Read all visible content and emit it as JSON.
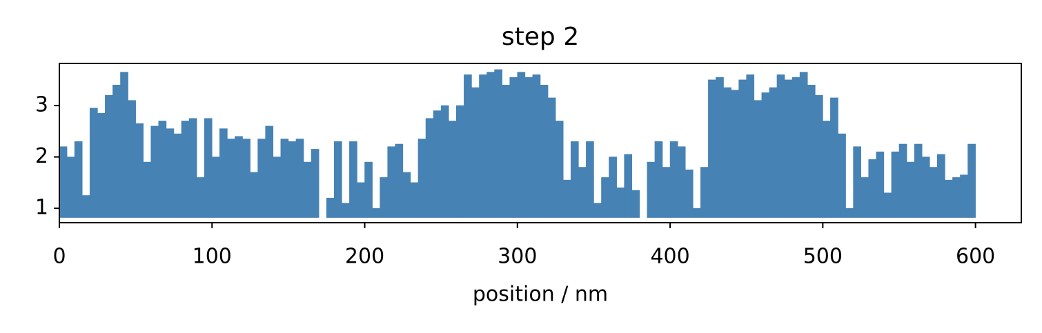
{
  "chart_data": {
    "type": "step-fill",
    "title": "step 2",
    "x_label": "position / nm",
    "color": "#4682b4",
    "x": [
      0,
      5,
      10,
      15,
      20,
      25,
      30,
      35,
      40,
      45,
      50,
      55,
      60,
      65,
      70,
      75,
      80,
      85,
      90,
      95,
      100,
      105,
      110,
      115,
      120,
      125,
      130,
      135,
      140,
      145,
      150,
      155,
      160,
      165,
      170,
      175,
      180,
      185,
      190,
      195,
      200,
      205,
      210,
      215,
      220,
      225,
      230,
      235,
      240,
      245,
      250,
      255,
      260,
      265,
      270,
      275,
      280,
      285,
      290,
      295,
      300,
      305,
      310,
      315,
      320,
      325,
      330,
      335,
      340,
      345,
      350,
      355,
      360,
      365,
      370,
      375,
      380,
      385,
      390,
      395,
      400,
      405,
      410,
      415,
      420,
      425,
      430,
      435,
      440,
      445,
      450,
      455,
      460,
      465,
      470,
      475,
      480,
      485,
      490,
      495,
      500,
      505,
      510,
      515,
      520,
      525,
      530,
      535,
      540,
      545,
      550,
      555,
      560,
      565,
      570,
      575,
      580,
      585,
      590,
      595
    ],
    "values": [
      2.2,
      2.0,
      2.3,
      1.25,
      2.95,
      2.85,
      3.2,
      3.4,
      3.65,
      3.1,
      2.65,
      1.9,
      2.6,
      2.7,
      2.55,
      2.45,
      2.7,
      2.75,
      1.6,
      2.75,
      2.0,
      2.55,
      2.35,
      2.4,
      2.35,
      1.7,
      2.35,
      2.6,
      2.0,
      2.35,
      2.3,
      2.35,
      1.9,
      2.15,
      0.82,
      1.2,
      2.3,
      1.1,
      2.3,
      1.5,
      1.9,
      1.0,
      1.6,
      2.2,
      2.25,
      1.7,
      1.5,
      2.35,
      2.75,
      2.9,
      3.0,
      2.7,
      3.0,
      3.6,
      3.35,
      3.6,
      3.65,
      3.7,
      3.4,
      3.55,
      3.65,
      3.55,
      3.6,
      3.4,
      3.15,
      2.7,
      1.55,
      2.3,
      1.8,
      2.3,
      1.1,
      1.6,
      2.0,
      1.4,
      2.05,
      1.35,
      0.82,
      1.9,
      2.3,
      1.8,
      2.3,
      2.2,
      1.75,
      1.0,
      1.8,
      3.5,
      3.55,
      3.35,
      3.3,
      3.5,
      3.6,
      3.1,
      3.25,
      3.35,
      3.6,
      3.5,
      3.55,
      3.65,
      3.4,
      3.2,
      2.7,
      3.15,
      2.45,
      1.0,
      2.2,
      1.6,
      1.95,
      2.1,
      1.3,
      2.1,
      2.25,
      1.9,
      2.25,
      2.0,
      1.8,
      2.05,
      1.55,
      1.6,
      1.65,
      2.25
    ],
    "xlim": [
      0,
      630
    ],
    "ylim": [
      0.72,
      3.82
    ],
    "xticks": [
      0,
      100,
      200,
      300,
      400,
      500,
      600
    ],
    "yticks": [
      1,
      2,
      3
    ]
  }
}
